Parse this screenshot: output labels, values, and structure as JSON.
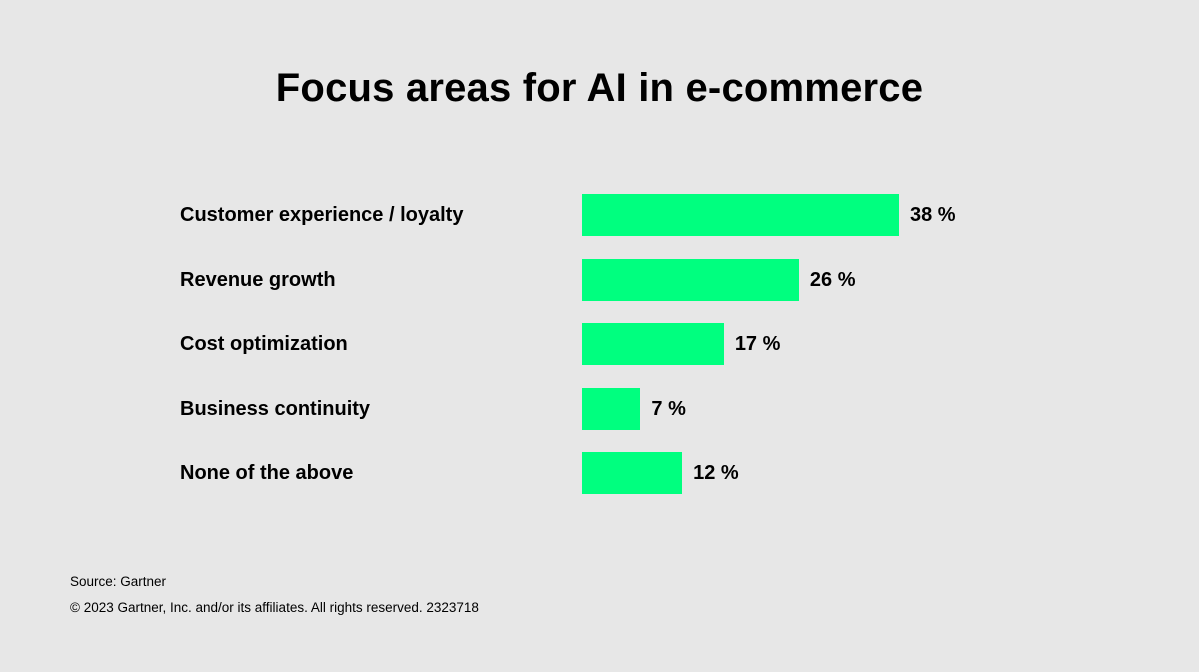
{
  "chart_data": {
    "type": "bar",
    "orientation": "horizontal",
    "title": "Focus areas for AI in e-commerce",
    "categories": [
      "Customer experience / loyalty",
      "Revenue growth",
      "Cost optimization",
      "Business continuity",
      "None of the above"
    ],
    "values": [
      38,
      26,
      17,
      7,
      12
    ],
    "value_labels": [
      "38 %",
      "26 %",
      "17 %",
      "7 %",
      "12 %"
    ],
    "xlabel": "",
    "ylabel": "",
    "xlim": [
      0,
      38
    ],
    "grid": false,
    "bar_color": "#00ff7f"
  },
  "footer": {
    "source": "Source: Gartner",
    "copyright": "© 2023 Gartner, Inc. and/or its affiliates. All rights reserved. 2323718"
  }
}
